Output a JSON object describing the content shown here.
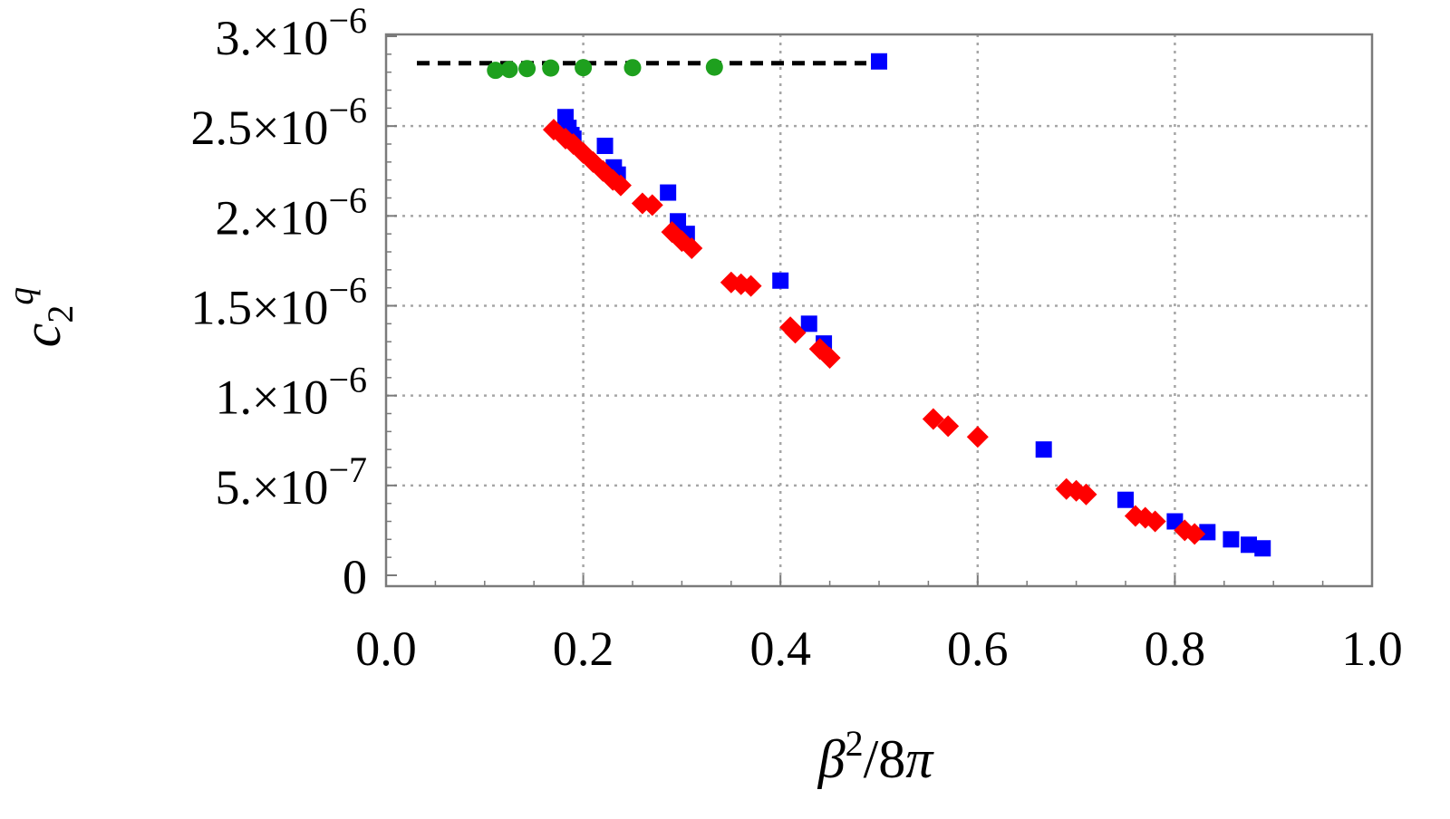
{
  "chart_data": {
    "type": "scatter",
    "title": "",
    "xlabel": "β²/8π",
    "ylabel": "c₂^q",
    "xlim": [
      0.0,
      1.0
    ],
    "ylim": [
      0,
      3e-06
    ],
    "grid": true,
    "x_ticks": [
      {
        "value": 0.0,
        "label": "0.0"
      },
      {
        "value": 0.2,
        "label": "0.2"
      },
      {
        "value": 0.4,
        "label": "0.4"
      },
      {
        "value": 0.6,
        "label": "0.6"
      },
      {
        "value": 0.8,
        "label": "0.8"
      },
      {
        "value": 1.0,
        "label": "1.0"
      }
    ],
    "y_ticks": [
      {
        "value": 0,
        "mantissa": "0",
        "exponent": ""
      },
      {
        "value": 5e-07,
        "mantissa": "5.×10",
        "exponent": "−7"
      },
      {
        "value": 1e-06,
        "mantissa": "1.×10",
        "exponent": "−6"
      },
      {
        "value": 1.5e-06,
        "mantissa": "1.5×10",
        "exponent": "−6"
      },
      {
        "value": 2e-06,
        "mantissa": "2.×10",
        "exponent": "−6"
      },
      {
        "value": 2.5e-06,
        "mantissa": "2.5×10",
        "exponent": "−6"
      },
      {
        "value": 3e-06,
        "mantissa": "3.×10",
        "exponent": "−6"
      }
    ],
    "reference_line": {
      "y": 2.85e-06,
      "x_range": [
        0.0,
        0.5
      ],
      "style": "dashed",
      "color": "#000000"
    },
    "series": [
      {
        "name": "green circles",
        "marker": "circle",
        "color": "#1ea01e",
        "points": [
          [
            0.111,
            2.81e-06
          ],
          [
            0.125,
            2.815e-06
          ],
          [
            0.143,
            2.82e-06
          ],
          [
            0.167,
            2.823e-06
          ],
          [
            0.2,
            2.825e-06
          ],
          [
            0.25,
            2.825e-06
          ],
          [
            0.333,
            2.828e-06
          ]
        ]
      },
      {
        "name": "blue squares",
        "marker": "square",
        "color": "#0000ff",
        "points": [
          [
            0.5,
            2.86e-06
          ],
          [
            0.182,
            2.55e-06
          ],
          [
            0.185,
            2.49e-06
          ],
          [
            0.188,
            2.45e-06
          ],
          [
            0.19,
            2.43e-06
          ],
          [
            0.222,
            2.39e-06
          ],
          [
            0.231,
            2.27e-06
          ],
          [
            0.235,
            2.23e-06
          ],
          [
            0.286,
            2.13e-06
          ],
          [
            0.296,
            1.97e-06
          ],
          [
            0.305,
            1.9e-06
          ],
          [
            0.4,
            1.64e-06
          ],
          [
            0.429,
            1.4e-06
          ],
          [
            0.444,
            1.29e-06
          ],
          [
            0.667,
            7e-07
          ],
          [
            0.75,
            4.2e-07
          ],
          [
            0.8,
            3e-07
          ],
          [
            0.833,
            2.4e-07
          ],
          [
            0.857,
            2e-07
          ],
          [
            0.875,
            1.7e-07
          ],
          [
            0.889,
            1.5e-07
          ]
        ]
      },
      {
        "name": "red diamonds",
        "marker": "diamond",
        "color": "#ff0000",
        "points": [
          [
            0.17,
            2.48e-06
          ],
          [
            0.182,
            2.43e-06
          ],
          [
            0.19,
            2.4e-06
          ],
          [
            0.2,
            2.35e-06
          ],
          [
            0.21,
            2.3e-06
          ],
          [
            0.22,
            2.25e-06
          ],
          [
            0.23,
            2.2e-06
          ],
          [
            0.238,
            2.17e-06
          ],
          [
            0.26,
            2.07e-06
          ],
          [
            0.27,
            2.06e-06
          ],
          [
            0.29,
            1.91e-06
          ],
          [
            0.3,
            1.86e-06
          ],
          [
            0.31,
            1.82e-06
          ],
          [
            0.35,
            1.63e-06
          ],
          [
            0.36,
            1.62e-06
          ],
          [
            0.37,
            1.61e-06
          ],
          [
            0.41,
            1.38e-06
          ],
          [
            0.415,
            1.35e-06
          ],
          [
            0.44,
            1.26e-06
          ],
          [
            0.45,
            1.21e-06
          ],
          [
            0.555,
            8.7e-07
          ],
          [
            0.57,
            8.3e-07
          ],
          [
            0.6,
            7.7e-07
          ],
          [
            0.69,
            4.8e-07
          ],
          [
            0.7,
            4.7e-07
          ],
          [
            0.71,
            4.5e-07
          ],
          [
            0.76,
            3.3e-07
          ],
          [
            0.77,
            3.2e-07
          ],
          [
            0.78,
            3e-07
          ],
          [
            0.81,
            2.5e-07
          ],
          [
            0.82,
            2.3e-07
          ]
        ]
      }
    ]
  }
}
